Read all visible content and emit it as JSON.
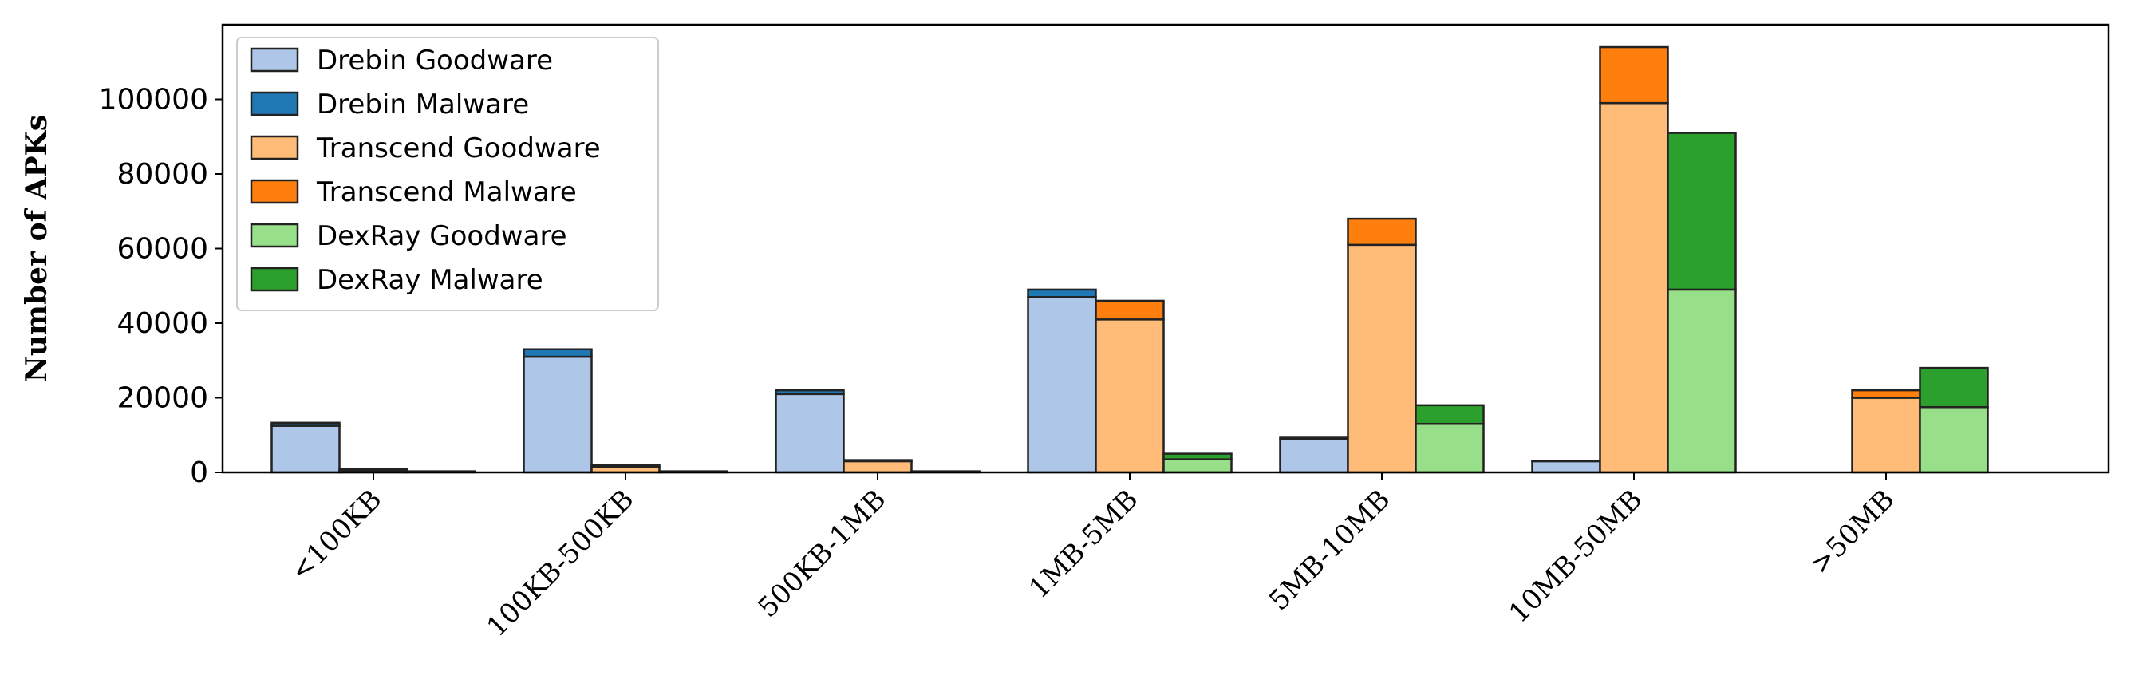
{
  "chart_data": {
    "type": "bar",
    "stacked_grouped": true,
    "ylabel": "Number of APKs",
    "xlabel": "",
    "ylim": [
      0,
      120000
    ],
    "yticks": [
      0,
      20000,
      40000,
      60000,
      80000,
      100000
    ],
    "yticklabels": [
      "0",
      "20000",
      "40000",
      "60000",
      "80000",
      "100000"
    ],
    "categories": [
      "<100KB",
      "100KB-500KB",
      "500KB-1MB",
      "1MB-5MB",
      "5MB-10MB",
      "10MB-50MB",
      ">50MB"
    ],
    "groups": [
      {
        "name": "Drebin",
        "segments": [
          {
            "name": "Drebin Goodware",
            "color": "#aec7e8",
            "values": [
              12500,
              31000,
              21000,
              47000,
              9000,
              3000,
              0
            ]
          },
          {
            "name": "Drebin Malware",
            "color": "#1f77b4",
            "values": [
              800,
              2000,
              1000,
              2000,
              300,
              100,
              0
            ]
          }
        ]
      },
      {
        "name": "Transcend",
        "segments": [
          {
            "name": "Transcend Goodware",
            "color": "#ffbb78",
            "values": [
              500,
              1500,
              3000,
              41000,
              61000,
              99000,
              20000
            ]
          },
          {
            "name": "Transcend Malware",
            "color": "#ff7f0e",
            "values": [
              300,
              500,
              300,
              5000,
              7000,
              15000,
              2000
            ]
          }
        ]
      },
      {
        "name": "DexRay",
        "segments": [
          {
            "name": "DexRay Goodware",
            "color": "#98df8a",
            "values": [
              200,
              200,
              200,
              3500,
              13000,
              49000,
              17500
            ]
          },
          {
            "name": "DexRay Malware",
            "color": "#2ca02c",
            "values": [
              100,
              100,
              100,
              1500,
              5000,
              42000,
              10500
            ]
          }
        ]
      }
    ],
    "legend": {
      "position": "top-left",
      "entries": [
        {
          "label": "Drebin Goodware",
          "color": "#aec7e8"
        },
        {
          "label": "Drebin Malware",
          "color": "#1f77b4"
        },
        {
          "label": "Transcend Goodware",
          "color": "#ffbb78"
        },
        {
          "label": "Transcend Malware",
          "color": "#ff7f0e"
        },
        {
          "label": "DexRay Goodware",
          "color": "#98df8a"
        },
        {
          "label": "DexRay Malware",
          "color": "#2ca02c"
        }
      ]
    },
    "grid": false
  }
}
